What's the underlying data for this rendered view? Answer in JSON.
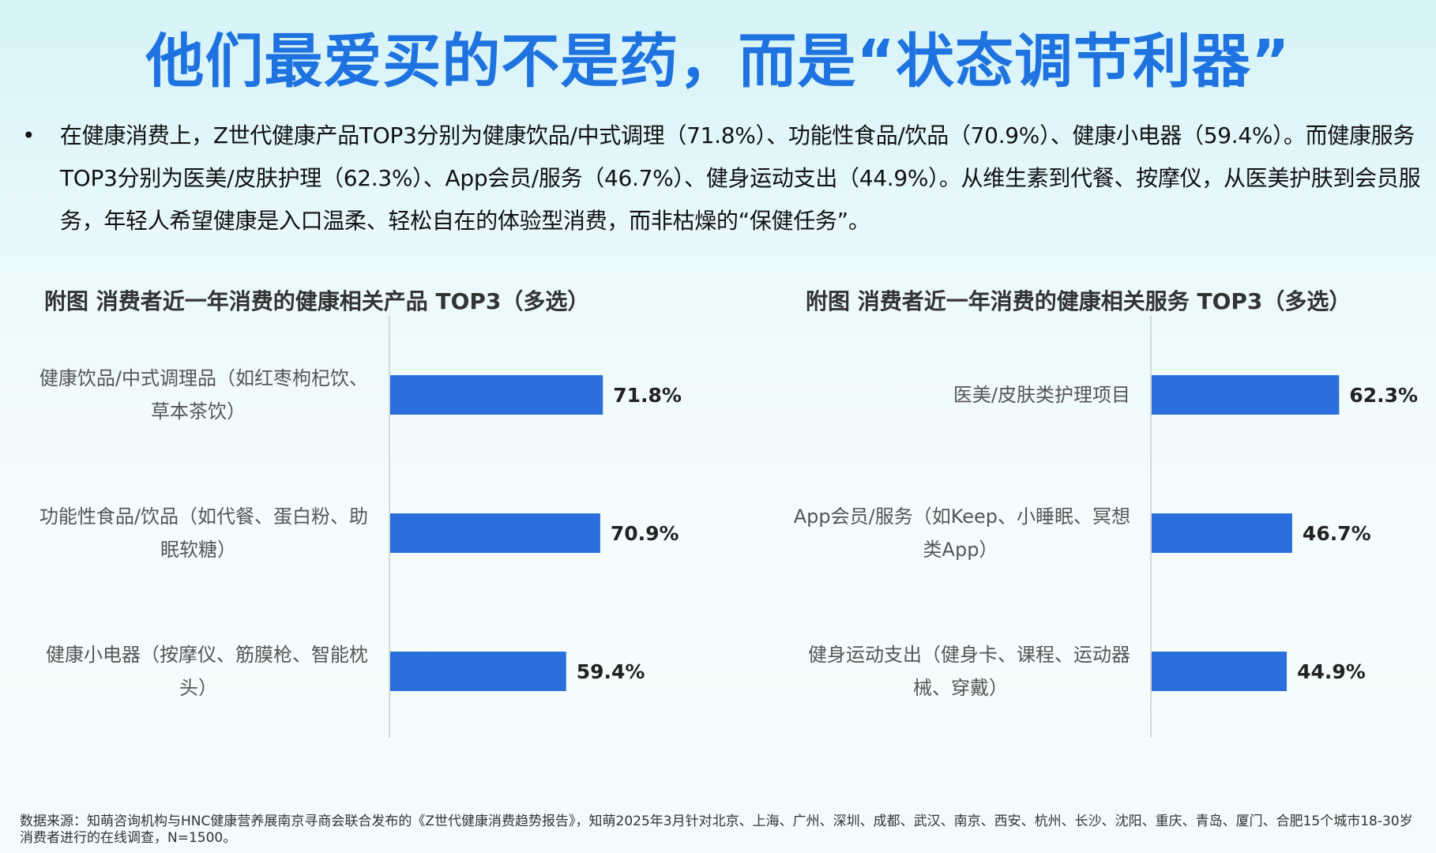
{
  "title": "他们最爱买的不是药，而是“状态调节利器”",
  "summary": {
    "bullet": "•",
    "text": "在健康消费上，Z世代健康产品TOP3分别为健康饮品/中式调理（71.8%）、功能性食品/饮品（70.9%）、健康小电器（59.4%）。而健康服务TOP3分别为医美/皮肤护理（62.3%）、App会员/服务（46.7%）、健身运动支出（44.9%）。从维生素到代餐、按摩仪，从医美护肤到会员服务，年轻人希望健康是入口温柔、轻松自在的体验型消费，而非枯燥的“保健任务”。"
  },
  "colors": {
    "title": "#1f73e0",
    "bar": "#2a6fdb",
    "axis": "#cccccc"
  },
  "chart_data": [
    {
      "type": "bar",
      "orientation": "horizontal",
      "title": "附图  消费者近一年消费的健康相关产品 TOP3（多选）",
      "categories": [
        [
          "健康饮品/中式调理品（如红枣枸杞饮、",
          "草本茶饮）"
        ],
        [
          "功能性食品/饮品（如代餐、蛋白粉、助",
          "眠软糖）"
        ],
        [
          "健康小电器（按摩仪、筋膜枪、智能枕",
          "头）"
        ]
      ],
      "values": [
        71.8,
        70.9,
        59.4
      ],
      "value_labels": [
        "71.8%",
        "70.9%",
        "59.4%"
      ],
      "xlim": [
        0,
        100
      ],
      "grid": false,
      "legend": "none"
    },
    {
      "type": "bar",
      "orientation": "horizontal",
      "title": "附图  消费者近一年消费的健康相关服务 TOP3（多选）",
      "categories": [
        [
          "医美/皮肤类护理项目"
        ],
        [
          "App会员/服务（如Keep、小睡眠、冥想",
          "类App）"
        ],
        [
          "健身运动支出（健身卡、课程、运动器",
          "械、穿戴）"
        ]
      ],
      "values": [
        62.3,
        46.7,
        44.9
      ],
      "value_labels": [
        "62.3%",
        "46.7%",
        "44.9%"
      ],
      "xlim": [
        0,
        100
      ],
      "grid": false,
      "legend": "none"
    }
  ],
  "footer": "数据来源：知萌咨询机构与HNC健康营养展南京寻商会联合发布的《Z世代健康消费趋势报告》，知萌2025年3月针对北京、上海、广州、深圳、成都、武汉、南京、西安、杭州、长沙、沈阳、重庆、青岛、厦门、合肥15个城市18-30岁消费者进行的在线调查，N=1500。"
}
